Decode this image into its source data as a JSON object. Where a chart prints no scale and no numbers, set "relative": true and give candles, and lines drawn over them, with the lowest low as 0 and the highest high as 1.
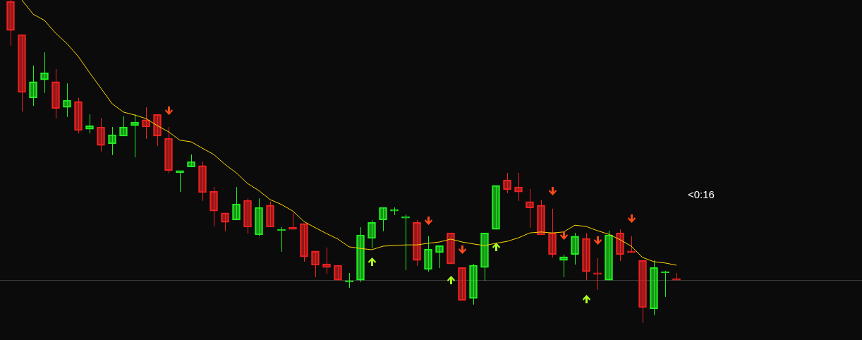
{
  "chart_data": {
    "type": "candlestick",
    "relative": true,
    "categories": [
      null,
      null,
      null,
      null,
      null,
      null,
      null,
      null,
      null,
      null,
      null,
      null,
      null,
      null,
      null,
      null,
      null,
      null,
      null,
      null,
      null,
      null,
      null,
      null,
      null,
      null,
      null,
      null,
      null,
      null,
      null,
      null,
      null,
      null,
      null,
      null,
      null,
      null,
      null,
      null,
      null,
      null,
      null,
      null,
      null,
      null,
      null,
      null,
      null,
      null,
      null,
      null,
      null,
      null,
      null,
      null,
      null,
      null,
      null,
      null
    ],
    "ohlc": [
      [
        0.996,
        1.0,
        0.858,
        0.906
      ],
      [
        0.893,
        0.893,
        0.655,
        0.714
      ],
      [
        0.697,
        0.797,
        0.672,
        0.747
      ],
      [
        0.753,
        0.838,
        0.712,
        0.775
      ],
      [
        0.747,
        0.786,
        0.633,
        0.664
      ],
      [
        0.668,
        0.742,
        0.638,
        0.69
      ],
      [
        0.686,
        0.697,
        0.587,
        0.596
      ],
      [
        0.6,
        0.646,
        0.587,
        0.611
      ],
      [
        0.607,
        0.635,
        0.531,
        0.55
      ],
      [
        0.555,
        0.607,
        0.52,
        0.583
      ],
      [
        0.579,
        0.64,
        0.579,
        0.607
      ],
      [
        0.611,
        0.646,
        0.513,
        0.622
      ],
      [
        0.629,
        0.668,
        0.57,
        0.607
      ],
      [
        0.646,
        0.646,
        0.548,
        0.579
      ],
      [
        0.572,
        0.607,
        0.463,
        0.472
      ],
      [
        0.465,
        0.472,
        0.406,
        0.472
      ],
      [
        0.483,
        0.522,
        0.483,
        0.5
      ],
      [
        0.487,
        0.5,
        0.378,
        0.404
      ],
      [
        0.408,
        0.421,
        0.299,
        0.347
      ],
      [
        0.341,
        0.341,
        0.284,
        0.312
      ],
      [
        0.319,
        0.421,
        0.319,
        0.369
      ],
      [
        0.38,
        0.386,
        0.277,
        0.297
      ],
      [
        0.273,
        0.386,
        0.269,
        0.358
      ],
      [
        0.365,
        0.376,
        0.297,
        0.297
      ],
      [
        0.286,
        0.297,
        0.221,
        0.29
      ],
      [
        0.297,
        0.341,
        0.29,
        0.29
      ],
      [
        0.308,
        0.308,
        0.19,
        0.205
      ],
      [
        0.223,
        0.223,
        0.142,
        0.179
      ],
      [
        0.183,
        0.234,
        0.151,
        0.172
      ],
      [
        0.179,
        0.179,
        0.133,
        0.133
      ],
      [
        0.127,
        0.155,
        0.109,
        0.127
      ],
      [
        0.133,
        0.297,
        0.127,
        0.273
      ],
      [
        0.262,
        0.319,
        0.231,
        0.312
      ],
      [
        0.319,
        0.358,
        0.284,
        0.358
      ],
      [
        0.347,
        0.358,
        0.334,
        0.347
      ],
      [
        0.325,
        0.336,
        0.164,
        0.325
      ],
      [
        0.312,
        0.319,
        0.177,
        0.194
      ],
      [
        0.166,
        0.269,
        0.159,
        0.229
      ],
      [
        0.218,
        0.24,
        0.17,
        0.24
      ],
      [
        0.279,
        0.279,
        0.183,
        0.183
      ],
      [
        0.172,
        0.172,
        0.07,
        0.07
      ],
      [
        0.076,
        0.183,
        0.057,
        0.179
      ],
      [
        0.172,
        0.279,
        0.131,
        0.279
      ],
      [
        0.29,
        0.426,
        0.29,
        0.426
      ],
      [
        0.443,
        0.465,
        0.402,
        0.413
      ],
      [
        0.421,
        0.465,
        0.378,
        0.406
      ],
      [
        0.376,
        0.415,
        0.295,
        0.356
      ],
      [
        0.365,
        0.38,
        0.273,
        0.273
      ],
      [
        0.279,
        0.354,
        0.203,
        0.212
      ],
      [
        0.194,
        0.212,
        0.142,
        0.205
      ],
      [
        0.212,
        0.279,
        0.181,
        0.269
      ],
      [
        0.262,
        0.279,
        0.133,
        0.159
      ],
      [
        0.155,
        0.201,
        0.103,
        0.151
      ],
      [
        0.133,
        0.286,
        0.133,
        0.273
      ],
      [
        0.279,
        0.29,
        0.192,
        0.212
      ],
      [
        0.223,
        0.269,
        0.218,
        0.218
      ],
      [
        0.194,
        0.194,
        0.0,
        0.048
      ],
      [
        0.044,
        0.194,
        0.024,
        0.172
      ],
      [
        0.155,
        0.162,
        0.081,
        0.155
      ],
      [
        0.138,
        0.155,
        0.133,
        0.133
      ]
    ],
    "colors": [
      "#ee2222",
      "#ee2222",
      "#22ee22",
      "#22ee22",
      "#ee2222",
      "#22ee22",
      "#ee2222",
      "#22ee22",
      "#ee2222",
      "#22ee22",
      "#22ee22",
      "#22ee22",
      "#ee2222",
      "#ee2222",
      "#ee2222",
      "#22ee22",
      "#22ee22",
      "#ee2222",
      "#ee2222",
      "#ee2222",
      "#22ee22",
      "#ee2222",
      "#22ee22",
      "#ee2222",
      "#22ee22",
      "#ee2222",
      "#ee2222",
      "#ee2222",
      "#ee2222",
      "#ee2222",
      "#22ee22",
      "#22ee22",
      "#22ee22",
      "#22ee22",
      "#22ee22",
      "#22ee22",
      "#ee2222",
      "#22ee22",
      "#22ee22",
      "#ee2222",
      "#ee2222",
      "#22ee22",
      "#22ee22",
      "#22ee22",
      "#ee2222",
      "#ee2222",
      "#ee2222",
      "#ee2222",
      "#ee2222",
      "#22ee22",
      "#22ee22",
      "#ee2222",
      "#ee2222",
      "#22ee22",
      "#ee2222",
      "#ee2222",
      "#ee2222",
      "#22ee22",
      "#22ee22",
      "#ee2222"
    ],
    "series": [
      {
        "type": "line",
        "color": "#ffd700",
        "values": [
          null,
          1.0,
          0.956,
          0.937,
          0.897,
          0.865,
          0.825,
          0.775,
          0.727,
          0.679,
          0.653,
          0.644,
          0.633,
          0.611,
          0.592,
          0.566,
          0.561,
          0.541,
          0.522,
          0.491,
          0.465,
          0.432,
          0.41,
          0.382,
          0.367,
          0.347,
          0.314,
          0.295,
          0.277,
          0.26,
          0.236,
          0.231,
          0.227,
          0.238,
          0.24,
          0.242,
          0.242,
          0.247,
          0.251,
          0.26,
          0.251,
          0.245,
          0.24,
          0.247,
          0.253,
          0.264,
          0.279,
          0.282,
          0.279,
          0.282,
          0.303,
          0.299,
          0.286,
          0.275,
          0.258,
          0.238,
          0.203,
          0.19,
          0.186,
          0.179
        ]
      }
    ],
    "marker": "none",
    "ref_lines": [
      {
        "axis": "y",
        "value": 0.132,
        "color": "#3a3a3a"
      }
    ],
    "annotations": [
      "<0:16"
    ]
  }
}
